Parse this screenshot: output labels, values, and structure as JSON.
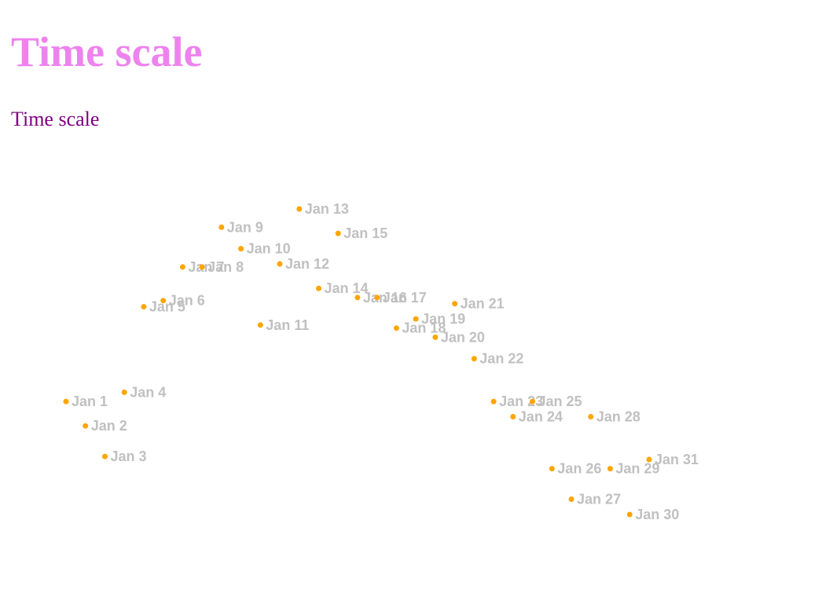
{
  "page": {
    "title": "Time scale",
    "subtitle": "Time scale"
  },
  "colors": {
    "title": "#ee82ee",
    "subtitle": "#800080",
    "point": "#ffa500",
    "label": "#c0c0c0"
  },
  "chart_data": {
    "type": "scatter",
    "title": "",
    "xlabel": "",
    "ylabel": "",
    "x_axis": "time",
    "xlim": [
      "Jan 1",
      "Jan 31"
    ],
    "ylim": [
      0,
      100
    ],
    "grid": false,
    "axes_visible": false,
    "points": [
      {
        "x": "Jan 1",
        "y": 40,
        "label": "Jan 1"
      },
      {
        "x": "Jan 2",
        "y": 32,
        "label": "Jan 2"
      },
      {
        "x": "Jan 3",
        "y": 22,
        "label": "Jan 3"
      },
      {
        "x": "Jan 4",
        "y": 43,
        "label": "Jan 4"
      },
      {
        "x": "Jan 5",
        "y": 71,
        "label": "Jan 5"
      },
      {
        "x": "Jan 6",
        "y": 73,
        "label": "Jan 6"
      },
      {
        "x": "Jan 7",
        "y": 84,
        "label": "Jan 7"
      },
      {
        "x": "Jan 8",
        "y": 84,
        "label": "Jan 8"
      },
      {
        "x": "Jan 9",
        "y": 97,
        "label": "Jan 9"
      },
      {
        "x": "Jan 10",
        "y": 90,
        "label": "Jan 10"
      },
      {
        "x": "Jan 11",
        "y": 65,
        "label": "Jan 11"
      },
      {
        "x": "Jan 12",
        "y": 85,
        "label": "Jan 12"
      },
      {
        "x": "Jan 13",
        "y": 103,
        "label": "Jan 13"
      },
      {
        "x": "Jan 14",
        "y": 77,
        "label": "Jan 14"
      },
      {
        "x": "Jan 15",
        "y": 95,
        "label": "Jan 15"
      },
      {
        "x": "Jan 16",
        "y": 74,
        "label": "Jan 16"
      },
      {
        "x": "Jan 17",
        "y": 74,
        "label": "Jan 17"
      },
      {
        "x": "Jan 18",
        "y": 64,
        "label": "Jan 18"
      },
      {
        "x": "Jan 19",
        "y": 67,
        "label": "Jan 19"
      },
      {
        "x": "Jan 20",
        "y": 61,
        "label": "Jan 20"
      },
      {
        "x": "Jan 21",
        "y": 72,
        "label": "Jan 21"
      },
      {
        "x": "Jan 22",
        "y": 54,
        "label": "Jan 22"
      },
      {
        "x": "Jan 23",
        "y": 40,
        "label": "Jan 23"
      },
      {
        "x": "Jan 24",
        "y": 35,
        "label": "Jan 24"
      },
      {
        "x": "Jan 25",
        "y": 40,
        "label": "Jan 25"
      },
      {
        "x": "Jan 26",
        "y": 18,
        "label": "Jan 26"
      },
      {
        "x": "Jan 27",
        "y": 8,
        "label": "Jan 27"
      },
      {
        "x": "Jan 28",
        "y": 35,
        "label": "Jan 28"
      },
      {
        "x": "Jan 29",
        "y": 18,
        "label": "Jan 29"
      },
      {
        "x": "Jan 30",
        "y": 3,
        "label": "Jan 30"
      },
      {
        "x": "Jan 31",
        "y": 21,
        "label": "Jan 31"
      }
    ]
  }
}
